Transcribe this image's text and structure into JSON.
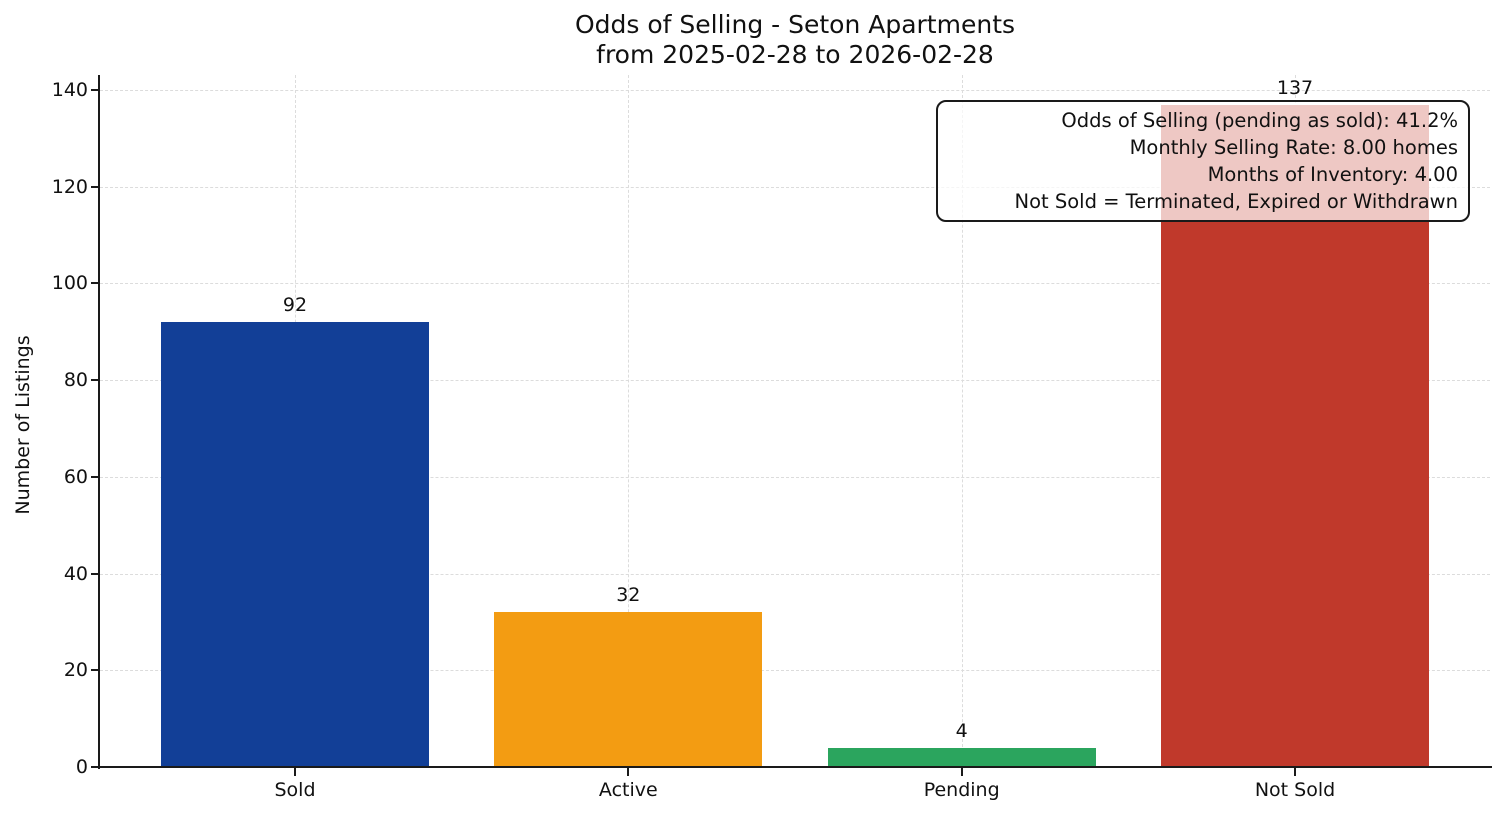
{
  "chart_data": {
    "type": "bar",
    "title": "Odds of Selling - Seton Apartments\nfrom 2025-02-28 to 2026-02-28",
    "title_line1": "Odds of Selling - Seton Apartments",
    "title_line2": "from 2025-02-28 to 2026-02-28",
    "xlabel": "",
    "ylabel": "Number of Listings",
    "categories": [
      "Sold",
      "Active",
      "Pending",
      "Not Sold"
    ],
    "values": [
      92,
      32,
      4,
      137
    ],
    "bar_colors": [
      "#123F97",
      "#F39C12",
      "#2BA55E",
      "#C0392B"
    ],
    "ylim": [
      0,
      143
    ],
    "yticks": [
      0,
      20,
      40,
      60,
      80,
      100,
      120,
      140
    ],
    "grid": true,
    "grid_style": "dashed",
    "legend": "none",
    "annotation": {
      "position": "top-right",
      "lines": [
        "Odds of Selling (pending as sold): 41.2%",
        "Monthly Selling Rate: 8.00 homes",
        "Months of Inventory: 4.00",
        "Not Sold = Terminated, Expired or Withdrawn"
      ]
    }
  }
}
